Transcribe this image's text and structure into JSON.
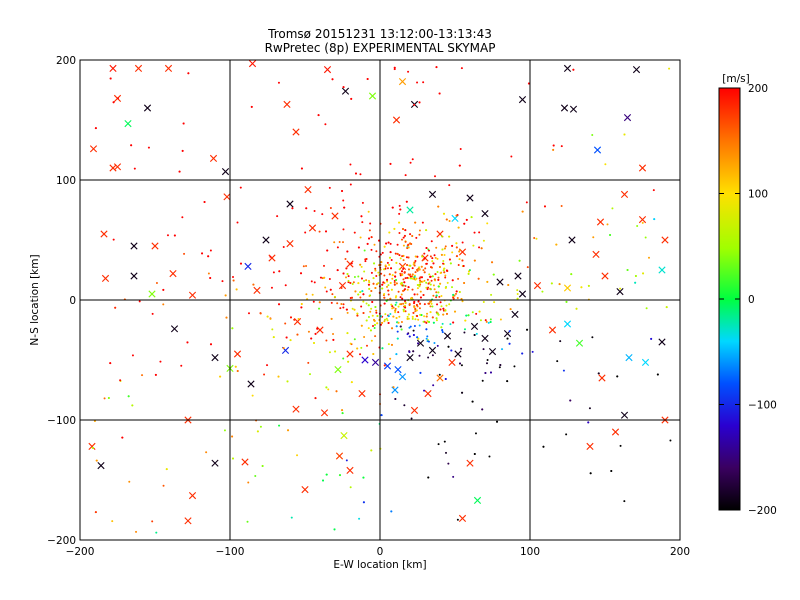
{
  "chart_data": {
    "type": "scatter",
    "title": "Tromsø 20151231 13:12:00-13:13:43",
    "subtitle": "RwPretec (8p) EXPERIMENTAL SKYMAP",
    "xlabel": "E-W location [km]",
    "ylabel": "N-S location [km]",
    "xlim": [
      -200,
      200
    ],
    "ylim": [
      -200,
      200
    ],
    "x_ticks": [
      "-200",
      "-100",
      "0",
      "100",
      "200"
    ],
    "y_ticks": [
      "-200",
      "-100",
      "0",
      "100",
      "200"
    ],
    "grid": true,
    "colorbar": {
      "label": "[m/s]",
      "min": -200,
      "max": 200,
      "ticks": [
        "200",
        "100",
        "0",
        "-100",
        "-200"
      ],
      "colormap": "rainbow: black(-200) → purple → blue → cyan → green(0) → yellow(100) → orange → red(200)"
    },
    "markers": {
      "dot": "meteor echo (small dot)",
      "cross": "meteor echo (×)"
    },
    "points": [
      {
        "x": -178,
        "y": 193,
        "v": 190,
        "m": "x"
      },
      {
        "x": -161,
        "y": 193,
        "v": 180,
        "m": "x"
      },
      {
        "x": -141,
        "y": 193,
        "v": 180,
        "m": "x"
      },
      {
        "x": -175,
        "y": 168,
        "v": 180,
        "m": "x"
      },
      {
        "x": -155,
        "y": 160,
        "v": -190,
        "m": "x"
      },
      {
        "x": -168,
        "y": 147,
        "v": -5,
        "m": "x"
      },
      {
        "x": -191,
        "y": 126,
        "v": 180,
        "m": "x"
      },
      {
        "x": -178,
        "y": 110,
        "v": 180,
        "m": "x"
      },
      {
        "x": -175,
        "y": 111,
        "v": 180,
        "m": "x"
      },
      {
        "x": -111,
        "y": 118,
        "v": 180,
        "m": "x"
      },
      {
        "x": -102,
        "y": 86,
        "v": 180,
        "m": "x"
      },
      {
        "x": -103,
        "y": 107,
        "v": -190,
        "m": "x"
      },
      {
        "x": -85,
        "y": 197,
        "v": 190,
        "m": "x"
      },
      {
        "x": -62,
        "y": 163,
        "v": 180,
        "m": "x"
      },
      {
        "x": -56,
        "y": 140,
        "v": 180,
        "m": "x"
      },
      {
        "x": -35,
        "y": 192,
        "v": 190,
        "m": "x"
      },
      {
        "x": -23,
        "y": 174,
        "v": -190,
        "m": "x"
      },
      {
        "x": -5,
        "y": 170,
        "v": 40,
        "m": "x"
      },
      {
        "x": 15,
        "y": 182,
        "v": 130,
        "m": "x"
      },
      {
        "x": 23,
        "y": 163,
        "v": -190,
        "m": "x"
      },
      {
        "x": 11,
        "y": 150,
        "v": 180,
        "m": "x"
      },
      {
        "x": 95,
        "y": 167,
        "v": -190,
        "m": "x"
      },
      {
        "x": 125,
        "y": 193,
        "v": -190,
        "m": "x"
      },
      {
        "x": 123,
        "y": 160,
        "v": -190,
        "m": "x"
      },
      {
        "x": 129,
        "y": 159,
        "v": -190,
        "m": "x"
      },
      {
        "x": 171,
        "y": 192,
        "v": -190,
        "m": "x"
      },
      {
        "x": 165,
        "y": 152,
        "v": -150,
        "m": "x"
      },
      {
        "x": 145,
        "y": 125,
        "v": -80,
        "m": "x"
      },
      {
        "x": 175,
        "y": 110,
        "v": 180,
        "m": "x"
      },
      {
        "x": 163,
        "y": 88,
        "v": 180,
        "m": "x"
      },
      {
        "x": -184,
        "y": 55,
        "v": 180,
        "m": "x"
      },
      {
        "x": -164,
        "y": 45,
        "v": -190,
        "m": "x"
      },
      {
        "x": -150,
        "y": 45,
        "v": 180,
        "m": "x"
      },
      {
        "x": -164,
        "y": 20,
        "v": -190,
        "m": "x"
      },
      {
        "x": -183,
        "y": 18,
        "v": 180,
        "m": "x"
      },
      {
        "x": -152,
        "y": 5,
        "v": 40,
        "m": "x"
      },
      {
        "x": -138,
        "y": 22,
        "v": 180,
        "m": "x"
      },
      {
        "x": -125,
        "y": 4,
        "v": 180,
        "m": "x"
      },
      {
        "x": -137,
        "y": -24,
        "v": -190,
        "m": "x"
      },
      {
        "x": -110,
        "y": -48,
        "v": -190,
        "m": "x"
      },
      {
        "x": -95,
        "y": -45,
        "v": 180,
        "m": "x"
      },
      {
        "x": -88,
        "y": 28,
        "v": -100,
        "m": "x"
      },
      {
        "x": -76,
        "y": 50,
        "v": -190,
        "m": "x"
      },
      {
        "x": -82,
        "y": 8,
        "v": 180,
        "m": "x"
      },
      {
        "x": -63,
        "y": -42,
        "v": -100,
        "m": "x"
      },
      {
        "x": -100,
        "y": -57,
        "v": 40,
        "m": "x"
      },
      {
        "x": -86,
        "y": -70,
        "v": -190,
        "m": "x"
      },
      {
        "x": -56,
        "y": -91,
        "v": 180,
        "m": "x"
      },
      {
        "x": -37,
        "y": -94,
        "v": 180,
        "m": "x"
      },
      {
        "x": -192,
        "y": -122,
        "v": 180,
        "m": "x"
      },
      {
        "x": -186,
        "y": -138,
        "v": -190,
        "m": "x"
      },
      {
        "x": -128,
        "y": -100,
        "v": 180,
        "m": "x"
      },
      {
        "x": -110,
        "y": -136,
        "v": -190,
        "m": "x"
      },
      {
        "x": -125,
        "y": -163,
        "v": 180,
        "m": "x"
      },
      {
        "x": -128,
        "y": -184,
        "v": 180,
        "m": "x"
      },
      {
        "x": -90,
        "y": -135,
        "v": 180,
        "m": "x"
      },
      {
        "x": -50,
        "y": -158,
        "v": 180,
        "m": "x"
      },
      {
        "x": -27,
        "y": -130,
        "v": 170,
        "m": "x"
      },
      {
        "x": -24,
        "y": -113,
        "v": 70,
        "m": "x"
      },
      {
        "x": -20,
        "y": -142,
        "v": 180,
        "m": "x"
      },
      {
        "x": 60,
        "y": -136,
        "v": 180,
        "m": "x"
      },
      {
        "x": 55,
        "y": -182,
        "v": 180,
        "m": "x"
      },
      {
        "x": 65,
        "y": -167,
        "v": -5,
        "m": "x"
      },
      {
        "x": 140,
        "y": -122,
        "v": 180,
        "m": "x"
      },
      {
        "x": 163,
        "y": -96,
        "v": -190,
        "m": "x"
      },
      {
        "x": 157,
        "y": -110,
        "v": 180,
        "m": "x"
      },
      {
        "x": 190,
        "y": -100,
        "v": 180,
        "m": "x"
      },
      {
        "x": 148,
        "y": -65,
        "v": 180,
        "m": "x"
      },
      {
        "x": 166,
        "y": -48,
        "v": -50,
        "m": "x"
      },
      {
        "x": 177,
        "y": -52,
        "v": -40,
        "m": "x"
      },
      {
        "x": 188,
        "y": -35,
        "v": -190,
        "m": "x"
      },
      {
        "x": 188,
        "y": 25,
        "v": -30,
        "m": "x"
      },
      {
        "x": 190,
        "y": 50,
        "v": 180,
        "m": "x"
      },
      {
        "x": 175,
        "y": 67,
        "v": 180,
        "m": "x"
      },
      {
        "x": 147,
        "y": 65,
        "v": 180,
        "m": "x"
      },
      {
        "x": 128,
        "y": 50,
        "v": -190,
        "m": "x"
      },
      {
        "x": 144,
        "y": 38,
        "v": 180,
        "m": "x"
      },
      {
        "x": 150,
        "y": 20,
        "v": 180,
        "m": "x"
      },
      {
        "x": 160,
        "y": 7,
        "v": -190,
        "m": "x"
      },
      {
        "x": 125,
        "y": 10,
        "v": 110,
        "m": "x"
      },
      {
        "x": 125,
        "y": -20,
        "v": -40,
        "m": "x"
      },
      {
        "x": 115,
        "y": -25,
        "v": 180,
        "m": "x"
      },
      {
        "x": 133,
        "y": -36,
        "v": 20,
        "m": "x"
      },
      {
        "x": 105,
        "y": 12,
        "v": 180,
        "m": "x"
      },
      {
        "x": -10,
        "y": -50,
        "v": -120,
        "m": "x"
      },
      {
        "x": -3,
        "y": -52,
        "v": -140,
        "m": "x"
      },
      {
        "x": 5,
        "y": -55,
        "v": -90,
        "m": "x"
      },
      {
        "x": 12,
        "y": -58,
        "v": -80,
        "m": "x"
      },
      {
        "x": 15,
        "y": -64,
        "v": -60,
        "m": "x"
      },
      {
        "x": 20,
        "y": -48,
        "v": -190,
        "m": "x"
      },
      {
        "x": 27,
        "y": -36,
        "v": -190,
        "m": "x"
      },
      {
        "x": 35,
        "y": -42,
        "v": -190,
        "m": "x"
      },
      {
        "x": 45,
        "y": -30,
        "v": -190,
        "m": "x"
      },
      {
        "x": 52,
        "y": -45,
        "v": -190,
        "m": "x"
      },
      {
        "x": 63,
        "y": -22,
        "v": -190,
        "m": "x"
      },
      {
        "x": 70,
        "y": -32,
        "v": -190,
        "m": "x"
      },
      {
        "x": 75,
        "y": -43,
        "v": -190,
        "m": "x"
      },
      {
        "x": 85,
        "y": -28,
        "v": -190,
        "m": "x"
      },
      {
        "x": 90,
        "y": -12,
        "v": -190,
        "m": "x"
      },
      {
        "x": 95,
        "y": 5,
        "v": -190,
        "m": "x"
      },
      {
        "x": 92,
        "y": 20,
        "v": -190,
        "m": "x"
      },
      {
        "x": 80,
        "y": 15,
        "v": -190,
        "m": "x"
      },
      {
        "x": 55,
        "y": 40,
        "v": 180,
        "m": "x"
      },
      {
        "x": 40,
        "y": 55,
        "v": 180,
        "m": "x"
      },
      {
        "x": 30,
        "y": 35,
        "v": 180,
        "m": "x"
      },
      {
        "x": 15,
        "y": 28,
        "v": 180,
        "m": "x"
      },
      {
        "x": 20,
        "y": 75,
        "v": -20,
        "m": "x"
      },
      {
        "x": 35,
        "y": 88,
        "v": -190,
        "m": "x"
      },
      {
        "x": 60,
        "y": 85,
        "v": -190,
        "m": "x"
      },
      {
        "x": 70,
        "y": 72,
        "v": -190,
        "m": "x"
      },
      {
        "x": 50,
        "y": 68,
        "v": -40,
        "m": "x"
      },
      {
        "x": -30,
        "y": 70,
        "v": 180,
        "m": "x"
      },
      {
        "x": -45,
        "y": 60,
        "v": 180,
        "m": "x"
      },
      {
        "x": -60,
        "y": 47,
        "v": 180,
        "m": "x"
      },
      {
        "x": -72,
        "y": 35,
        "v": 180,
        "m": "x"
      },
      {
        "x": -48,
        "y": 92,
        "v": 180,
        "m": "x"
      },
      {
        "x": -60,
        "y": 80,
        "v": -190,
        "m": "x"
      },
      {
        "x": -20,
        "y": 30,
        "v": 180,
        "m": "x"
      },
      {
        "x": -25,
        "y": 12,
        "v": 180,
        "m": "x"
      },
      {
        "x": -40,
        "y": -25,
        "v": 180,
        "m": "x"
      },
      {
        "x": -55,
        "y": -18,
        "v": 180,
        "m": "x"
      },
      {
        "x": -20,
        "y": -45,
        "v": 180,
        "m": "x"
      },
      {
        "x": -28,
        "y": -58,
        "v": 40,
        "m": "x"
      },
      {
        "x": 40,
        "y": -65,
        "v": 150,
        "m": "x"
      },
      {
        "x": 48,
        "y": -52,
        "v": 180,
        "m": "x"
      },
      {
        "x": 32,
        "y": -78,
        "v": 180,
        "m": "x"
      },
      {
        "x": 10,
        "y": -75,
        "v": -60,
        "m": "x"
      },
      {
        "x": -12,
        "y": -78,
        "v": 180,
        "m": "x"
      },
      {
        "x": 23,
        "y": -92,
        "v": 180,
        "m": "x"
      }
    ]
  }
}
